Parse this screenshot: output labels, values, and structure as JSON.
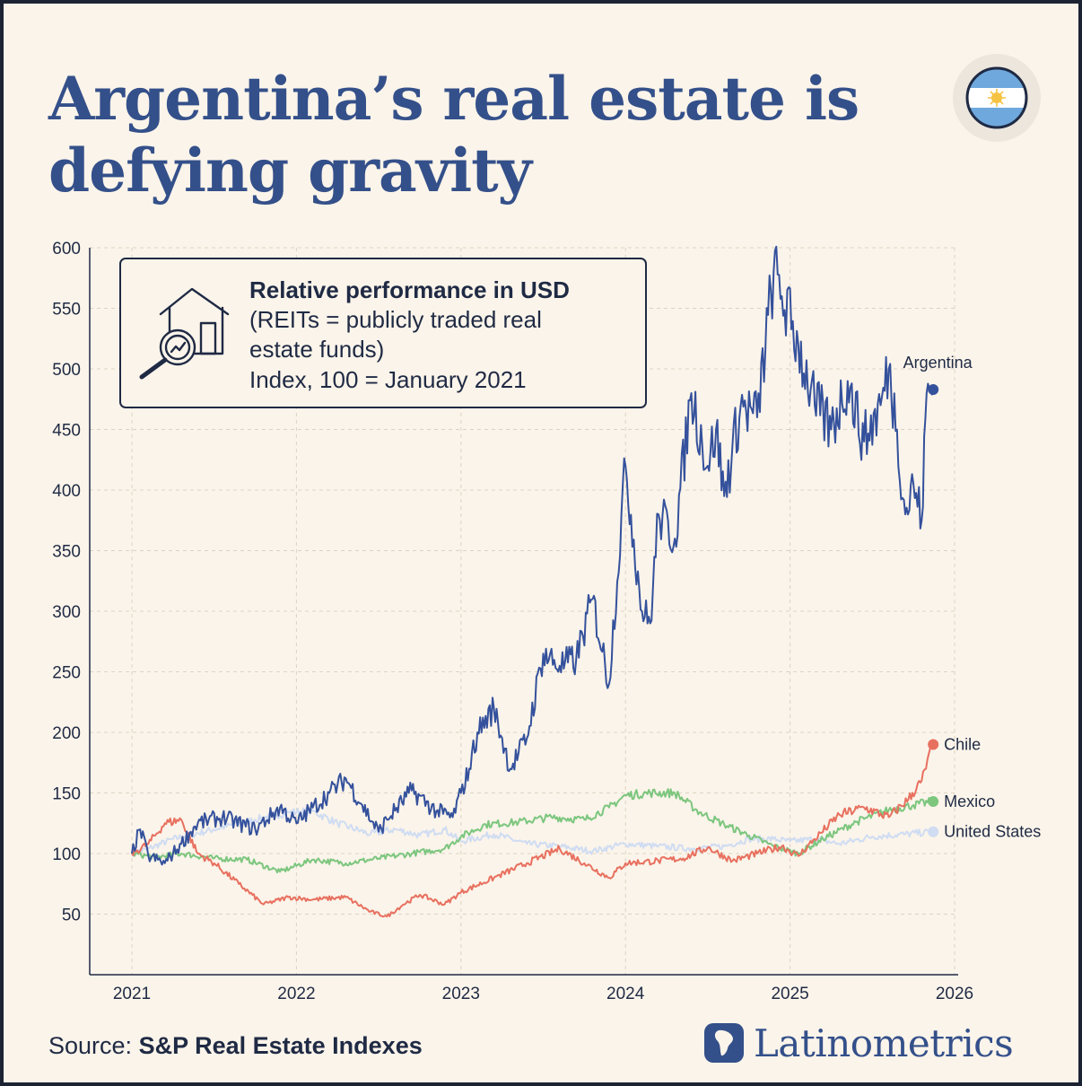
{
  "title": "Argentina’s real estate is defying gravity",
  "brand": {
    "name": "Latinometrics"
  },
  "source": {
    "label": "Source:",
    "value": "S&P Real Estate Indexes"
  },
  "colors": {
    "argentina": "#34519c",
    "chile": "#e8705f",
    "mexico": "#7cc67e",
    "united_states": "#cfdcf2",
    "title": "#34508a",
    "background": "#fbf4ea"
  },
  "icons": {
    "flag": "argentina-flag-icon",
    "info": "house-magnifier-chart-icon",
    "brand": "latinometrics-logo-icon"
  },
  "chart_data": {
    "type": "line",
    "x_ticks": [
      "2021",
      "2022",
      "2023",
      "2024",
      "2025",
      "2026"
    ],
    "y_ticks": [
      "50",
      "100",
      "150",
      "200",
      "250",
      "300",
      "350",
      "400",
      "450",
      "500",
      "550",
      "600"
    ],
    "ylim": [
      0,
      600
    ],
    "xlim": [
      2021,
      2026
    ],
    "grid": true,
    "annotation": {
      "title": "Relative performance in USD",
      "line1": "(REITs = publicly traded real",
      "line2": "estate funds)",
      "line3": "Index, 100 = January 2021"
    },
    "series": [
      {
        "name": "United States",
        "key": "united_states",
        "x": [
          2021.0,
          2021.1,
          2021.25,
          2021.5,
          2021.75,
          2021.95,
          2022.1,
          2022.25,
          2022.45,
          2022.6,
          2022.75,
          2022.9,
          2023.0,
          2023.2,
          2023.4,
          2023.6,
          2023.8,
          2024.0,
          2024.2,
          2024.4,
          2024.6,
          2024.75,
          2024.9,
          2025.0,
          2025.15,
          2025.3,
          2025.5,
          2025.7,
          2025.87
        ],
        "y": [
          100,
          104,
          112,
          120,
          128,
          134,
          135,
          125,
          116,
          120,
          115,
          120,
          110,
          116,
          108,
          106,
          102,
          108,
          106,
          104,
          106,
          112,
          112,
          110,
          112,
          108,
          114,
          116,
          118
        ]
      },
      {
        "name": "Mexico",
        "key": "mexico",
        "x": [
          2021.0,
          2021.15,
          2021.3,
          2021.5,
          2021.7,
          2021.9,
          2022.1,
          2022.3,
          2022.5,
          2022.7,
          2022.9,
          2023.0,
          2023.15,
          2023.35,
          2023.55,
          2023.75,
          2023.9,
          2024.0,
          2024.15,
          2024.3,
          2024.45,
          2024.6,
          2024.75,
          2024.9,
          2025.05,
          2025.2,
          2025.4,
          2025.6,
          2025.75,
          2025.87
        ],
        "y": [
          100,
          97,
          100,
          96,
          95,
          85,
          95,
          92,
          96,
          100,
          104,
          114,
          124,
          126,
          130,
          128,
          138,
          148,
          150,
          150,
          134,
          124,
          115,
          106,
          100,
          112,
          126,
          136,
          140,
          143
        ]
      },
      {
        "name": "Chile",
        "key": "chile",
        "x": [
          2021.0,
          2021.1,
          2021.2,
          2021.3,
          2021.4,
          2021.5,
          2021.65,
          2021.8,
          2021.95,
          2022.1,
          2022.3,
          2022.45,
          2022.55,
          2022.65,
          2022.75,
          2022.9,
          2023.0,
          2023.2,
          2023.4,
          2023.6,
          2023.75,
          2023.9,
          2024.0,
          2024.2,
          2024.35,
          2024.5,
          2024.65,
          2024.8,
          2024.95,
          2025.05,
          2025.15,
          2025.3,
          2025.45,
          2025.6,
          2025.72,
          2025.8,
          2025.87
        ],
        "y": [
          100,
          108,
          125,
          128,
          100,
          92,
          75,
          58,
          64,
          62,
          64,
          52,
          48,
          58,
          66,
          58,
          68,
          80,
          92,
          104,
          92,
          80,
          92,
          94,
          96,
          105,
          94,
          100,
          106,
          98,
          112,
          132,
          138,
          130,
          145,
          160,
          190
        ]
      },
      {
        "name": "Argentina",
        "key": "argentina",
        "x": [
          2021.0,
          2021.05,
          2021.1,
          2021.2,
          2021.3,
          2021.4,
          2021.55,
          2021.75,
          2021.9,
          2022.0,
          2022.1,
          2022.2,
          2022.3,
          2022.4,
          2022.5,
          2022.55,
          2022.7,
          2022.85,
          2022.95,
          2023.0,
          2023.05,
          2023.1,
          2023.2,
          2023.3,
          2023.4,
          2023.5,
          2023.6,
          2023.7,
          2023.8,
          2023.9,
          2024.0,
          2024.1,
          2024.15,
          2024.2,
          2024.3,
          2024.4,
          2024.5,
          2024.55,
          2024.6,
          2024.7,
          2024.8,
          2024.9,
          2024.95,
          2025.05,
          2025.15,
          2025.25,
          2025.35,
          2025.45,
          2025.55,
          2025.6,
          2025.65,
          2025.7,
          2025.75,
          2025.8,
          2025.83,
          2025.87
        ],
        "y": [
          100,
          120,
          98,
          92,
          108,
          125,
          130,
          120,
          138,
          125,
          138,
          150,
          162,
          140,
          118,
          128,
          152,
          135,
          130,
          150,
          170,
          200,
          220,
          170,
          195,
          265,
          255,
          260,
          310,
          240,
          420,
          300,
          290,
          380,
          360,
          480,
          420,
          450,
          395,
          470,
          460,
          580,
          560,
          520,
          470,
          450,
          490,
          440,
          470,
          500,
          450,
          380,
          405,
          375,
          480,
          483
        ]
      }
    ]
  }
}
